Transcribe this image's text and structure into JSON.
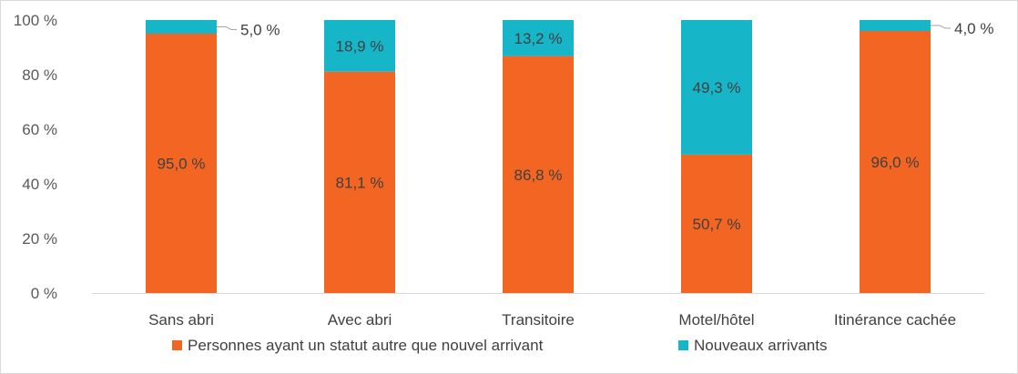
{
  "chart_data": {
    "type": "bar",
    "stacked": true,
    "percent_axis": true,
    "categories": [
      "Sans abri",
      "Avec abri",
      "Transitoire",
      "Motel/hôtel",
      "Itinérance cachée"
    ],
    "series": [
      {
        "name": "Personnes ayant un statut autre que nouvel arrivant",
        "color": "#f26522",
        "values": [
          95.0,
          81.1,
          86.8,
          50.7,
          96.0
        ],
        "labels": [
          "95,0 %",
          "81,1 %",
          "86,8 %",
          "50,7 %",
          "96,0 %"
        ]
      },
      {
        "name": "Nouveaux arrivants",
        "color": "#17b5c8",
        "values": [
          5.0,
          18.9,
          13.2,
          49.3,
          4.0
        ],
        "labels": [
          "5,0 %",
          "18,9 %",
          "13,2 %",
          "49,3 %",
          "4,0 %"
        ]
      }
    ],
    "ylim": [
      0,
      100
    ],
    "yticks": [
      0,
      20,
      40,
      60,
      80,
      100
    ],
    "ytick_labels": [
      "0 %",
      "20 %",
      "40 %",
      "60 %",
      "80 %",
      "100 %"
    ],
    "grid": false,
    "legend_position": "bottom",
    "title": "",
    "xlabel": "",
    "ylabel": ""
  }
}
